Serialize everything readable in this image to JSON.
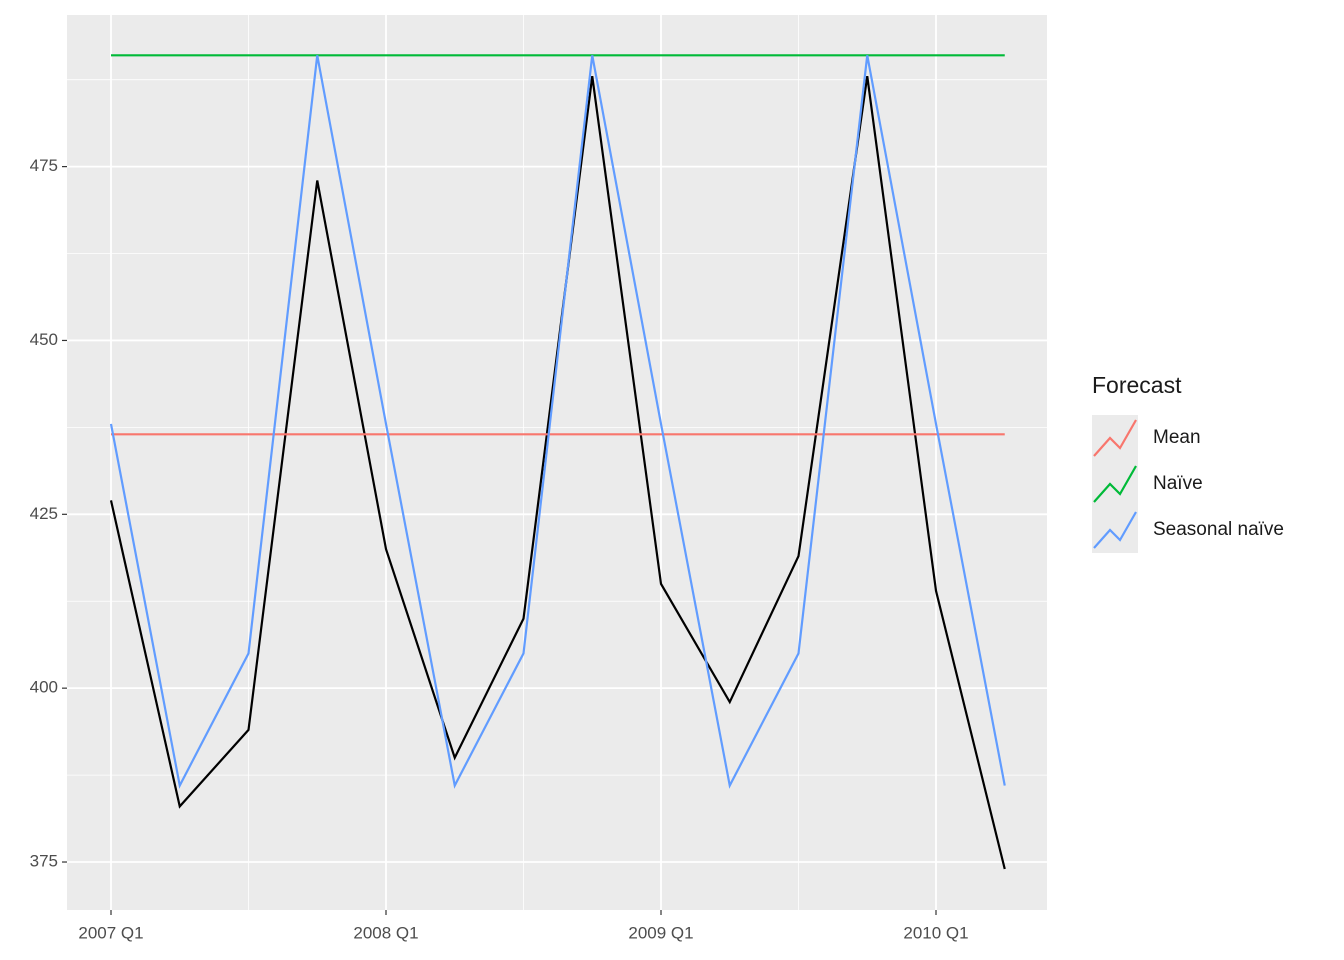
{
  "chart_data": {
    "type": "line",
    "categories": [
      "2007 Q1",
      null,
      null,
      null,
      "2008 Q1",
      null,
      null,
      null,
      "2009 Q1",
      null,
      null,
      null,
      "2010 Q1",
      null
    ],
    "actual": {
      "color": "#000000",
      "values": [
        427,
        383,
        394,
        473,
        420,
        390,
        410,
        488,
        415,
        398,
        419,
        488,
        414,
        374
      ]
    },
    "series": [
      {
        "name": "Mean",
        "color": "#f8766d",
        "values": [
          436.5,
          436.5,
          436.5,
          436.5,
          436.5,
          436.5,
          436.5,
          436.5,
          436.5,
          436.5,
          436.5,
          436.5,
          436.5,
          436.5
        ]
      },
      {
        "name": "Naïve",
        "color": "#00ba38",
        "values": [
          491,
          491,
          491,
          491,
          491,
          491,
          491,
          491,
          491,
          491,
          491,
          491,
          491,
          491
        ]
      },
      {
        "name": "Seasonal naïve",
        "color": "#619cff",
        "values": [
          438,
          386,
          405,
          491,
          438,
          386,
          405,
          491,
          438,
          386,
          405,
          491,
          438,
          386
        ]
      }
    ],
    "legend_title": "Forecast",
    "ylim": [
      368.1,
      496.8
    ],
    "yticks": [
      375,
      400,
      425,
      450,
      475
    ],
    "grid": true
  }
}
